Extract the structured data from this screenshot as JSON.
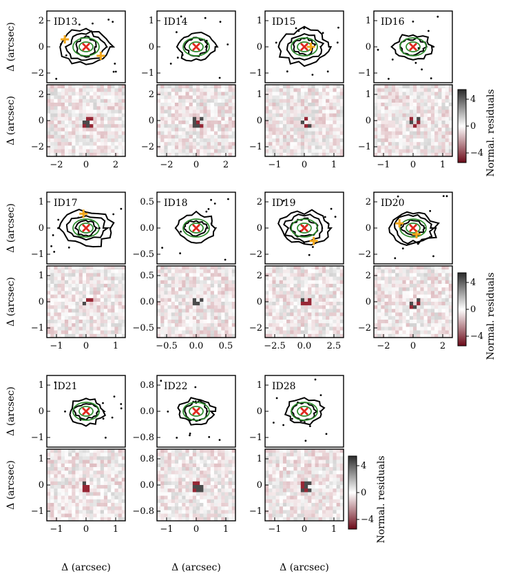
{
  "figure": {
    "xlabel": "Δ (arcsec)",
    "ylabel": "Δ (arcsec)",
    "colorbar_label": "Normal. residuals",
    "colorbar_ticks": [
      "4",
      "0",
      "−4"
    ]
  },
  "colors": {
    "contour_black": "#000000",
    "contour_green": "#2e8b2e",
    "centroid_cross": "#e0281f",
    "component_plus": "#f2a71b",
    "residual_positive": "#3a3a3a",
    "residual_negative": "#8b0f1e"
  },
  "chart_data": [
    {
      "type": "heatmap",
      "id": "ID13",
      "label": "ID13",
      "xlim": [
        -2.4,
        2.4
      ],
      "ylim": [
        -2.4,
        2.4
      ],
      "xticks": [
        "−2",
        "0",
        "2"
      ],
      "yticks_top": [
        "2",
        "0",
        "−2"
      ],
      "yticks_bottom": [
        "2",
        "0",
        "−2"
      ],
      "cross": [
        [
          0,
          0
        ]
      ],
      "plus": [
        [
          -1.3,
          0.5
        ],
        [
          0.9,
          -0.6
        ]
      ]
    },
    {
      "type": "heatmap",
      "id": "ID14",
      "label": "ID14",
      "xlim": [
        -2,
        2
      ],
      "ylim": [
        -2,
        2
      ],
      "xticks": [
        "−2",
        "0",
        "2"
      ],
      "yticks_top": [
        "1",
        "0",
        "−1"
      ],
      "yticks_bottom": [
        "2",
        "0",
        "−2"
      ],
      "cross": [
        [
          0,
          0
        ]
      ],
      "plus": []
    },
    {
      "type": "heatmap",
      "id": "ID15",
      "label": "ID15",
      "xlim": [
        -1.8,
        1.8
      ],
      "ylim": [
        -1.8,
        1.8
      ],
      "xticks": [
        "−1",
        "0",
        "1"
      ],
      "yticks_top": [
        "1",
        "0",
        "−1"
      ],
      "yticks_bottom": [
        "1",
        "0",
        "−1"
      ],
      "cross": [
        [
          0,
          0
        ]
      ],
      "plus": [
        [
          0.3,
          0
        ]
      ]
    },
    {
      "type": "heatmap",
      "id": "ID16",
      "label": "ID16",
      "xlim": [
        -1.6,
        1.6
      ],
      "ylim": [
        -1.6,
        1.6
      ],
      "xticks": [
        "−1",
        "0",
        "1"
      ],
      "yticks_top": [
        "1",
        "0",
        "−1"
      ],
      "yticks_bottom": [
        "1",
        "0",
        "−1"
      ],
      "cross": [
        [
          0,
          0
        ]
      ],
      "plus": []
    },
    {
      "type": "heatmap",
      "id": "ID17",
      "label": "ID17",
      "xlim": [
        -1.5,
        1.5
      ],
      "ylim": [
        -1.5,
        1.5
      ],
      "xticks": [
        "−1",
        "0",
        "1"
      ],
      "yticks_top": [
        "1",
        "0",
        "−1"
      ],
      "yticks_bottom": [
        "1",
        "0",
        "−1"
      ],
      "cross": [
        [
          0,
          0
        ]
      ],
      "plus": [
        [
          -0.1,
          0.6
        ]
      ]
    },
    {
      "type": "heatmap",
      "id": "ID18",
      "label": "ID18",
      "xlim": [
        -0.8,
        0.8
      ],
      "ylim": [
        -0.8,
        0.8
      ],
      "xticks": [
        "−0.5",
        "0.0",
        "0.5"
      ],
      "yticks_top": [
        "0.5",
        "0.0",
        "−0.5"
      ],
      "yticks_bottom": [
        "0.5",
        "0.0",
        "−0.5"
      ],
      "cross": [
        [
          0,
          0
        ]
      ],
      "plus": []
    },
    {
      "type": "heatmap",
      "id": "ID19",
      "label": "ID19",
      "xlim": [
        -2.5,
        2.5
      ],
      "ylim": [
        -2.5,
        2.5
      ],
      "xticks": [
        "−2.5",
        "0.0",
        "2.5"
      ],
      "yticks_top": [
        "2",
        "0",
        "−2"
      ],
      "yticks_bottom": [
        "2",
        "0",
        "−2"
      ],
      "cross": [
        [
          0,
          0
        ]
      ],
      "plus": [
        [
          0.6,
          -0.9
        ]
      ]
    },
    {
      "type": "heatmap",
      "id": "ID20",
      "label": "ID20",
      "xlim": [
        -2.3,
        2.3
      ],
      "ylim": [
        -2.3,
        2.3
      ],
      "xticks": [
        "−2",
        "0",
        "2"
      ],
      "yticks_top": [
        "2",
        "0",
        "−2"
      ],
      "yticks_bottom": [
        "2",
        "0",
        "−2"
      ],
      "cross": [
        [
          0,
          0
        ]
      ],
      "plus": [
        [
          -0.8,
          0.3
        ],
        [
          0.2,
          -0.4
        ]
      ]
    },
    {
      "type": "heatmap",
      "id": "ID21",
      "label": "ID21",
      "xlim": [
        -1.5,
        1.5
      ],
      "ylim": [
        -1.5,
        1.5
      ],
      "xticks": [
        "−1",
        "0",
        "1"
      ],
      "yticks_top": [
        "1",
        "0",
        "−1"
      ],
      "yticks_bottom": [
        "1",
        "0",
        "−1"
      ],
      "cross": [
        [
          0,
          0
        ]
      ],
      "plus": []
    },
    {
      "type": "heatmap",
      "id": "ID22",
      "label": "ID22",
      "xlim": [
        -1.1,
        1.1
      ],
      "ylim": [
        -1.1,
        1.1
      ],
      "xticks": [
        "−1",
        "0",
        "1"
      ],
      "yticks_top": [
        "0.8",
        "0.0",
        "−0.8"
      ],
      "yticks_bottom": [
        "0.8",
        "0.0",
        "−0.8"
      ],
      "cross": [
        [
          0,
          0
        ]
      ],
      "plus": []
    },
    {
      "type": "heatmap",
      "id": "ID28",
      "label": "ID28",
      "xlim": [
        -1.6,
        1.6
      ],
      "ylim": [
        -1.6,
        1.6
      ],
      "xticks": [
        "−1",
        "0",
        "1"
      ],
      "yticks_top": [
        "1",
        "0",
        "−1"
      ],
      "yticks_bottom": [
        "1",
        "0",
        "−1"
      ],
      "cross": [
        [
          0,
          0
        ]
      ],
      "plus": []
    }
  ]
}
